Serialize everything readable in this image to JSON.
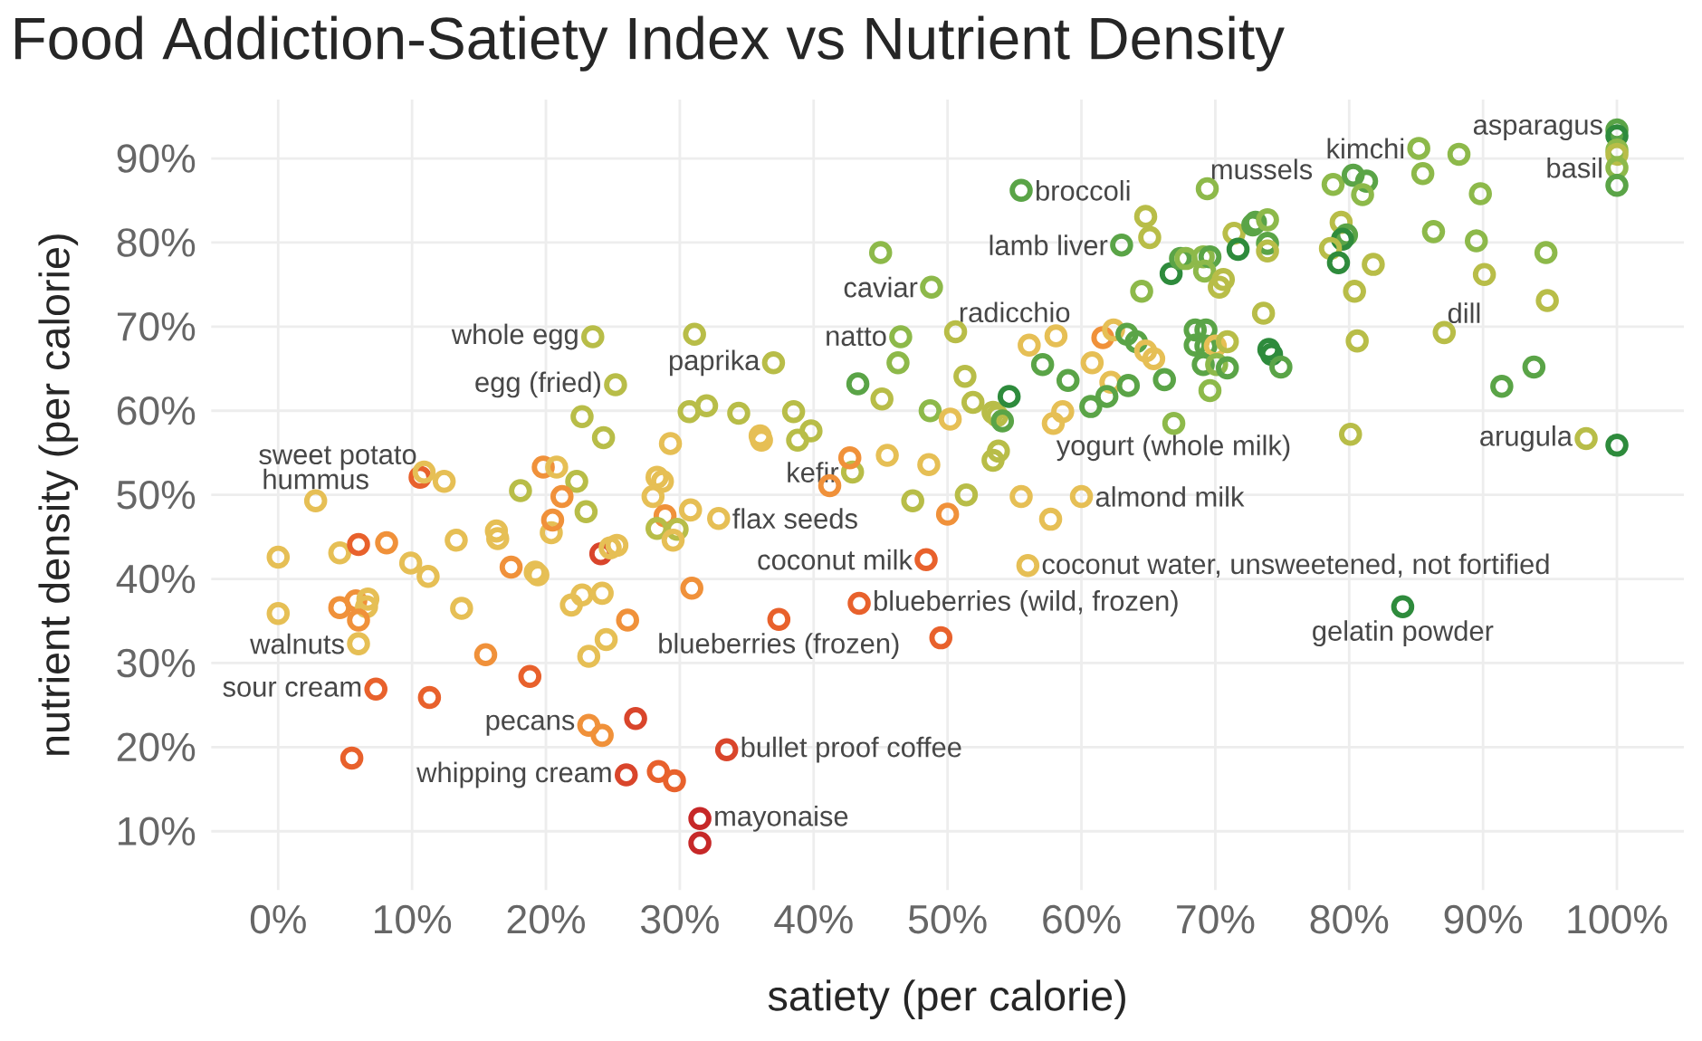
{
  "chart_data": {
    "type": "scatter",
    "title": "Food Addiction-Satiety Index vs Nutrient Density",
    "xlabel": "satiety (per calorie)",
    "ylabel": "nutrient density (per calorie)",
    "xlim": [
      -5,
      105
    ],
    "ylim": [
      3,
      97
    ],
    "xticks": [
      {
        "value": 0,
        "label": "0%"
      },
      {
        "value": 10,
        "label": "10%"
      },
      {
        "value": 20,
        "label": "20%"
      },
      {
        "value": 30,
        "label": "30%"
      },
      {
        "value": 40,
        "label": "40%"
      },
      {
        "value": 50,
        "label": "50%"
      },
      {
        "value": 60,
        "label": "60%"
      },
      {
        "value": 70,
        "label": "70%"
      },
      {
        "value": 80,
        "label": "80%"
      },
      {
        "value": 90,
        "label": "90%"
      },
      {
        "value": 100,
        "label": "100%"
      }
    ],
    "yticks": [
      {
        "value": 10,
        "label": "10%"
      },
      {
        "value": 20,
        "label": "20%"
      },
      {
        "value": 30,
        "label": "30%"
      },
      {
        "value": 40,
        "label": "40%"
      },
      {
        "value": 50,
        "label": "50%"
      },
      {
        "value": 60,
        "label": "60%"
      },
      {
        "value": 70,
        "label": "70%"
      },
      {
        "value": 80,
        "label": "80%"
      },
      {
        "value": 90,
        "label": "90%"
      }
    ],
    "grid": true,
    "marker": "circle",
    "x": [
      23.5,
      31.1,
      25.2,
      22.7,
      24.3,
      29.3,
      30.7,
      32.0,
      10.6,
      10.9,
      12.4,
      19.8,
      20.8,
      22.3,
      28.3,
      28.7,
      18.1,
      2.8,
      0,
      0,
      4.6,
      6.0,
      8.1,
      9.9,
      11.2,
      13.3,
      16.3,
      16.4,
      17.4,
      19.2,
      19.4,
      20.4,
      20.5,
      21.2,
      23.0,
      24.1,
      24.8,
      25.3,
      28.0,
      28.9,
      30.8,
      28.3,
      29.8,
      29.5,
      30.9,
      4.6,
      5.8,
      6.7,
      6.6,
      6.0,
      6.0,
      13.7,
      15.5,
      7.3,
      11.3,
      18.8,
      21.9,
      22.7,
      24.2,
      26.1,
      24.5,
      23.2,
      23.2,
      24.2,
      26.7,
      5.5,
      26.0,
      28.4,
      29.6,
      31.5,
      31.5,
      32.9,
      41.2,
      42.9,
      47.4,
      51.4,
      50.0,
      55.5,
      57.7,
      60.0,
      48.4,
      56.0,
      43.4,
      37.4,
      49.5,
      33.5,
      55.5,
      64.8,
      65.1,
      63.0,
      45.0,
      48.8,
      64.5,
      66.7,
      67.4,
      50.6,
      46.5,
      46.3,
      37.0,
      34.4,
      36.0,
      36.1,
      38.5,
      38.8,
      39.8,
      43.3,
      45.1,
      45.5,
      42.7,
      48.6,
      48.7,
      50.2,
      51.3,
      51.9,
      53.4,
      53.7,
      54.1,
      54.6,
      53.4,
      53.8,
      56.1,
      58.1,
      57.1,
      59.0,
      57.9,
      58.6,
      60.8,
      61.6,
      62.4,
      62.2,
      61.9,
      60.7,
      63.4,
      64.1,
      64.8,
      65.4,
      63.5,
      66.2,
      66.9,
      69.4,
      71.4,
      72.8,
      73.0,
      73.9,
      71.7,
      73.9,
      73.9,
      67.8,
      69.1,
      69.6,
      69.2,
      70.6,
      70.3,
      73.6,
      68.5,
      69.3,
      68.5,
      69.3,
      70.0,
      70.9,
      69.1,
      70.1,
      70.9,
      69.6,
      74.0,
      74.2,
      74.9,
      78.8,
      80.3,
      81.3,
      81.0,
      85.2,
      88.2,
      85.5,
      89.8,
      79.4,
      79.8,
      79.5,
      78.6,
      79.2,
      81.8,
      80.4,
      80.6,
      80.1,
      86.3,
      89.5,
      90.1,
      94.7,
      94.8,
      87.1,
      93.8,
      91.4,
      97.7,
      100,
      100,
      100,
      100,
      100,
      100,
      100,
      84.0
    ],
    "values": [
      68.8,
      69.1,
      63.1,
      59.3,
      56.8,
      56.1,
      59.9,
      60.6,
      52.1,
      52.7,
      51.6,
      53.3,
      53.3,
      51.6,
      52.1,
      51.6,
      50.5,
      49.3,
      42.6,
      35.9,
      43.1,
      44.1,
      44.3,
      41.9,
      40.3,
      44.6,
      45.7,
      44.8,
      41.4,
      40.8,
      40.5,
      45.5,
      47.0,
      49.8,
      48.0,
      43.0,
      43.7,
      44.0,
      49.8,
      47.5,
      48.2,
      46.0,
      45.9,
      44.6,
      38.9,
      36.6,
      37.4,
      37.6,
      36.7,
      35.1,
      32.3,
      36.5,
      31.0,
      26.9,
      25.9,
      28.4,
      36.9,
      38.1,
      38.3,
      35.1,
      32.8,
      30.8,
      22.6,
      21.4,
      23.4,
      18.7,
      16.7,
      17.1,
      16.0,
      11.5,
      8.6,
      47.2,
      51.1,
      52.7,
      49.3,
      50.0,
      47.7,
      49.8,
      47.1,
      49.8,
      42.3,
      41.6,
      37.1,
      35.2,
      33.0,
      19.7,
      86.2,
      83.1,
      80.6,
      79.7,
      78.8,
      74.7,
      74.2,
      76.3,
      78.1,
      69.4,
      68.8,
      65.7,
      65.7,
      59.7,
      57.0,
      56.5,
      59.9,
      56.5,
      57.6,
      63.2,
      61.4,
      54.7,
      54.4,
      53.6,
      60.0,
      59.0,
      64.1,
      61.0,
      59.8,
      59.4,
      58.8,
      61.7,
      54.1,
      55.2,
      67.8,
      68.9,
      65.5,
      63.6,
      58.5,
      59.9,
      65.7,
      68.7,
      69.6,
      63.4,
      61.7,
      60.5,
      69.1,
      68.2,
      67.1,
      66.2,
      63.0,
      63.7,
      58.5,
      86.4,
      81.1,
      82.1,
      82.4,
      82.7,
      79.2,
      79.9,
      79.0,
      78.1,
      78.3,
      78.3,
      76.6,
      75.6,
      74.7,
      71.6,
      69.6,
      69.6,
      67.8,
      67.7,
      67.7,
      68.2,
      65.5,
      65.5,
      65.1,
      62.4,
      67.3,
      66.7,
      65.2,
      86.9,
      88.0,
      87.3,
      85.7,
      91.2,
      90.5,
      88.2,
      85.8,
      82.4,
      80.9,
      80.4,
      79.3,
      77.6,
      77.4,
      74.2,
      68.3,
      57.2,
      81.3,
      80.2,
      76.2,
      78.8,
      73.1,
      69.3,
      65.2,
      62.9,
      56.7,
      55.9,
      93.4,
      92.7,
      91.0,
      90.5,
      88.9,
      86.8,
      36.7
    ],
    "colors": [
      "#b8bd48",
      "#b8bd48",
      "#b8bd48",
      "#b8bd48",
      "#b8bd48",
      "#e6bf55",
      "#b8bd48",
      "#b8bd48",
      "#e8612c",
      "#e6bf55",
      "#e6bf55",
      "#f0913a",
      "#e6bf55",
      "#b8bd48",
      "#e6bf55",
      "#e6bf55",
      "#b8bd48",
      "#e6bf55",
      "#e6bf55",
      "#e6bf55",
      "#e6bf55",
      "#e8612c",
      "#f0913a",
      "#e6bf55",
      "#e6bf55",
      "#e6bf55",
      "#e6bf55",
      "#e6bf55",
      "#f0913a",
      "#e6bf55",
      "#e6bf55",
      "#e6bf55",
      "#f0913a",
      "#f0913a",
      "#b8bd48",
      "#d9452b",
      "#e6bf55",
      "#e6bf55",
      "#e6bf55",
      "#f0913a",
      "#e6bf55",
      "#b8bd48",
      "#b8bd48",
      "#e6bf55",
      "#f0913a",
      "#f0913a",
      "#f0913a",
      "#e6bf55",
      "#e6bf55",
      "#f0913a",
      "#e6bf55",
      "#e6bf55",
      "#f0913a",
      "#e8612c",
      "#e8612c",
      "#e8612c",
      "#e6bf55",
      "#e6bf55",
      "#e6bf55",
      "#f0913a",
      "#e6bf55",
      "#e6bf55",
      "#f0913a",
      "#f0913a",
      "#d9452b",
      "#e8612c",
      "#d9452b",
      "#e8612c",
      "#e8612c",
      "#c62828",
      "#c62828",
      "#e6bf55",
      "#f0913a",
      "#b8bd48",
      "#b8bd48",
      "#b8bd48",
      "#f0913a",
      "#e6bf55",
      "#e6bf55",
      "#e6bf55",
      "#e8612c",
      "#e6bf55",
      "#e8612c",
      "#e8612c",
      "#e8612c",
      "#d9452b",
      "#5aa447",
      "#b8bd48",
      "#b8bd48",
      "#5aa447",
      "#8db94a",
      "#8db94a",
      "#8db94a",
      "#2e8b3c",
      "#5aa447",
      "#b8bd48",
      "#8db94a",
      "#8db94a",
      "#b8bd48",
      "#b8bd48",
      "#e6bf55",
      "#e6bf55",
      "#b8bd48",
      "#b8bd48",
      "#b8bd48",
      "#5aa447",
      "#b8bd48",
      "#e6bf55",
      "#f0913a",
      "#e6bf55",
      "#8db94a",
      "#e6bf55",
      "#b8bd48",
      "#b8bd48",
      "#b8bd48",
      "#b8bd48",
      "#5aa447",
      "#2e8b3c",
      "#b8bd48",
      "#b8bd48",
      "#e6bf55",
      "#e6bf55",
      "#5aa447",
      "#5aa447",
      "#e6bf55",
      "#e6bf55",
      "#e6bf55",
      "#f0913a",
      "#e6bf55",
      "#e6bf55",
      "#5aa447",
      "#5aa447",
      "#5aa447",
      "#5aa447",
      "#e6bf55",
      "#e6bf55",
      "#5aa447",
      "#5aa447",
      "#8db94a",
      "#8db94a",
      "#b8bd48",
      "#5aa447",
      "#5aa447",
      "#8db94a",
      "#2e8b3c",
      "#5aa447",
      "#b8bd48",
      "#8db94a",
      "#8db94a",
      "#5aa447",
      "#8db94a",
      "#b8bd48",
      "#b8bd48",
      "#b8bd48",
      "#5aa447",
      "#5aa447",
      "#5aa447",
      "#5aa447",
      "#e6bf55",
      "#b8bd48",
      "#5aa447",
      "#8db94a",
      "#5aa447",
      "#8db94a",
      "#2e8b3c",
      "#2e8b3c",
      "#5aa447",
      "#8db94a",
      "#5aa447",
      "#5aa447",
      "#8db94a",
      "#8db94a",
      "#8db94a",
      "#8db94a",
      "#8db94a",
      "#b8bd48",
      "#5aa447",
      "#2e8b3c",
      "#b8bd48",
      "#2e8b3c",
      "#b8bd48",
      "#b8bd48",
      "#b8bd48",
      "#b8bd48",
      "#8db94a",
      "#8db94a",
      "#b8bd48",
      "#8db94a",
      "#b8bd48",
      "#b8bd48",
      "#5aa447",
      "#5aa447",
      "#b8bd48",
      "#2e8b3c",
      "#5aa447",
      "#2e8b3c",
      "#8db94a",
      "#b8bd48",
      "#8db94a",
      "#5aa447",
      "#2e8b3c"
    ],
    "annotations": [
      {
        "text": "whole egg",
        "x": 23.5,
        "y": 68.8
      },
      {
        "text": "egg (fried)",
        "x": 25.2,
        "y": 63.1
      },
      {
        "text": "paprika",
        "x": 37.0,
        "y": 65.7
      },
      {
        "text": "sweet potato",
        "x": 10.6,
        "y": 52.1
      },
      {
        "text": "hummus",
        "x": 2.8,
        "y": 49.3
      },
      {
        "text": "walnuts",
        "x": 6.0,
        "y": 32.3
      },
      {
        "text": "sour cream",
        "x": 7.3,
        "y": 26.9
      },
      {
        "text": "pecans",
        "x": 23.2,
        "y": 22.6
      },
      {
        "text": "whipping cream",
        "x": 26.0,
        "y": 16.7
      },
      {
        "text": "mayonaise",
        "x": 31.5,
        "y": 11.5
      },
      {
        "text": "bullet proof coffee",
        "x": 33.5,
        "y": 19.7
      },
      {
        "text": "blueberries (frozen)",
        "x": 37.4,
        "y": 35.2
      },
      {
        "text": "blueberries (wild, frozen)",
        "x": 43.4,
        "y": 37.1
      },
      {
        "text": "coconut milk",
        "x": 48.4,
        "y": 42.3
      },
      {
        "text": "flax seeds",
        "x": 32.9,
        "y": 47.2
      },
      {
        "text": "kefir",
        "x": 42.9,
        "y": 52.7
      },
      {
        "text": "coconut water, unsweetened, not fortified",
        "x": 56.0,
        "y": 41.6
      },
      {
        "text": "yogurt (whole milk)",
        "x": 57.9,
        "y": 58.5
      },
      {
        "text": "almond milk",
        "x": 60.0,
        "y": 49.8
      },
      {
        "text": "natto",
        "x": 46.5,
        "y": 68.8
      },
      {
        "text": "caviar",
        "x": 48.8,
        "y": 74.7
      },
      {
        "text": "radicchio",
        "x": 50.6,
        "y": 69.4
      },
      {
        "text": "broccoli",
        "x": 55.5,
        "y": 86.2
      },
      {
        "text": "lamb liver",
        "x": 63.0,
        "y": 79.7
      },
      {
        "text": "mussels",
        "x": 69.4,
        "y": 86.4
      },
      {
        "text": "kimchi",
        "x": 85.2,
        "y": 91.2
      },
      {
        "text": "asparagus",
        "x": 100,
        "y": 93.4
      },
      {
        "text": "basil",
        "x": 100,
        "y": 88.9
      },
      {
        "text": "dill",
        "x": 87.1,
        "y": 69.3
      },
      {
        "text": "arugula",
        "x": 97.7,
        "y": 56.7
      },
      {
        "text": "gelatin powder",
        "x": 84.0,
        "y": 36.7
      }
    ]
  }
}
